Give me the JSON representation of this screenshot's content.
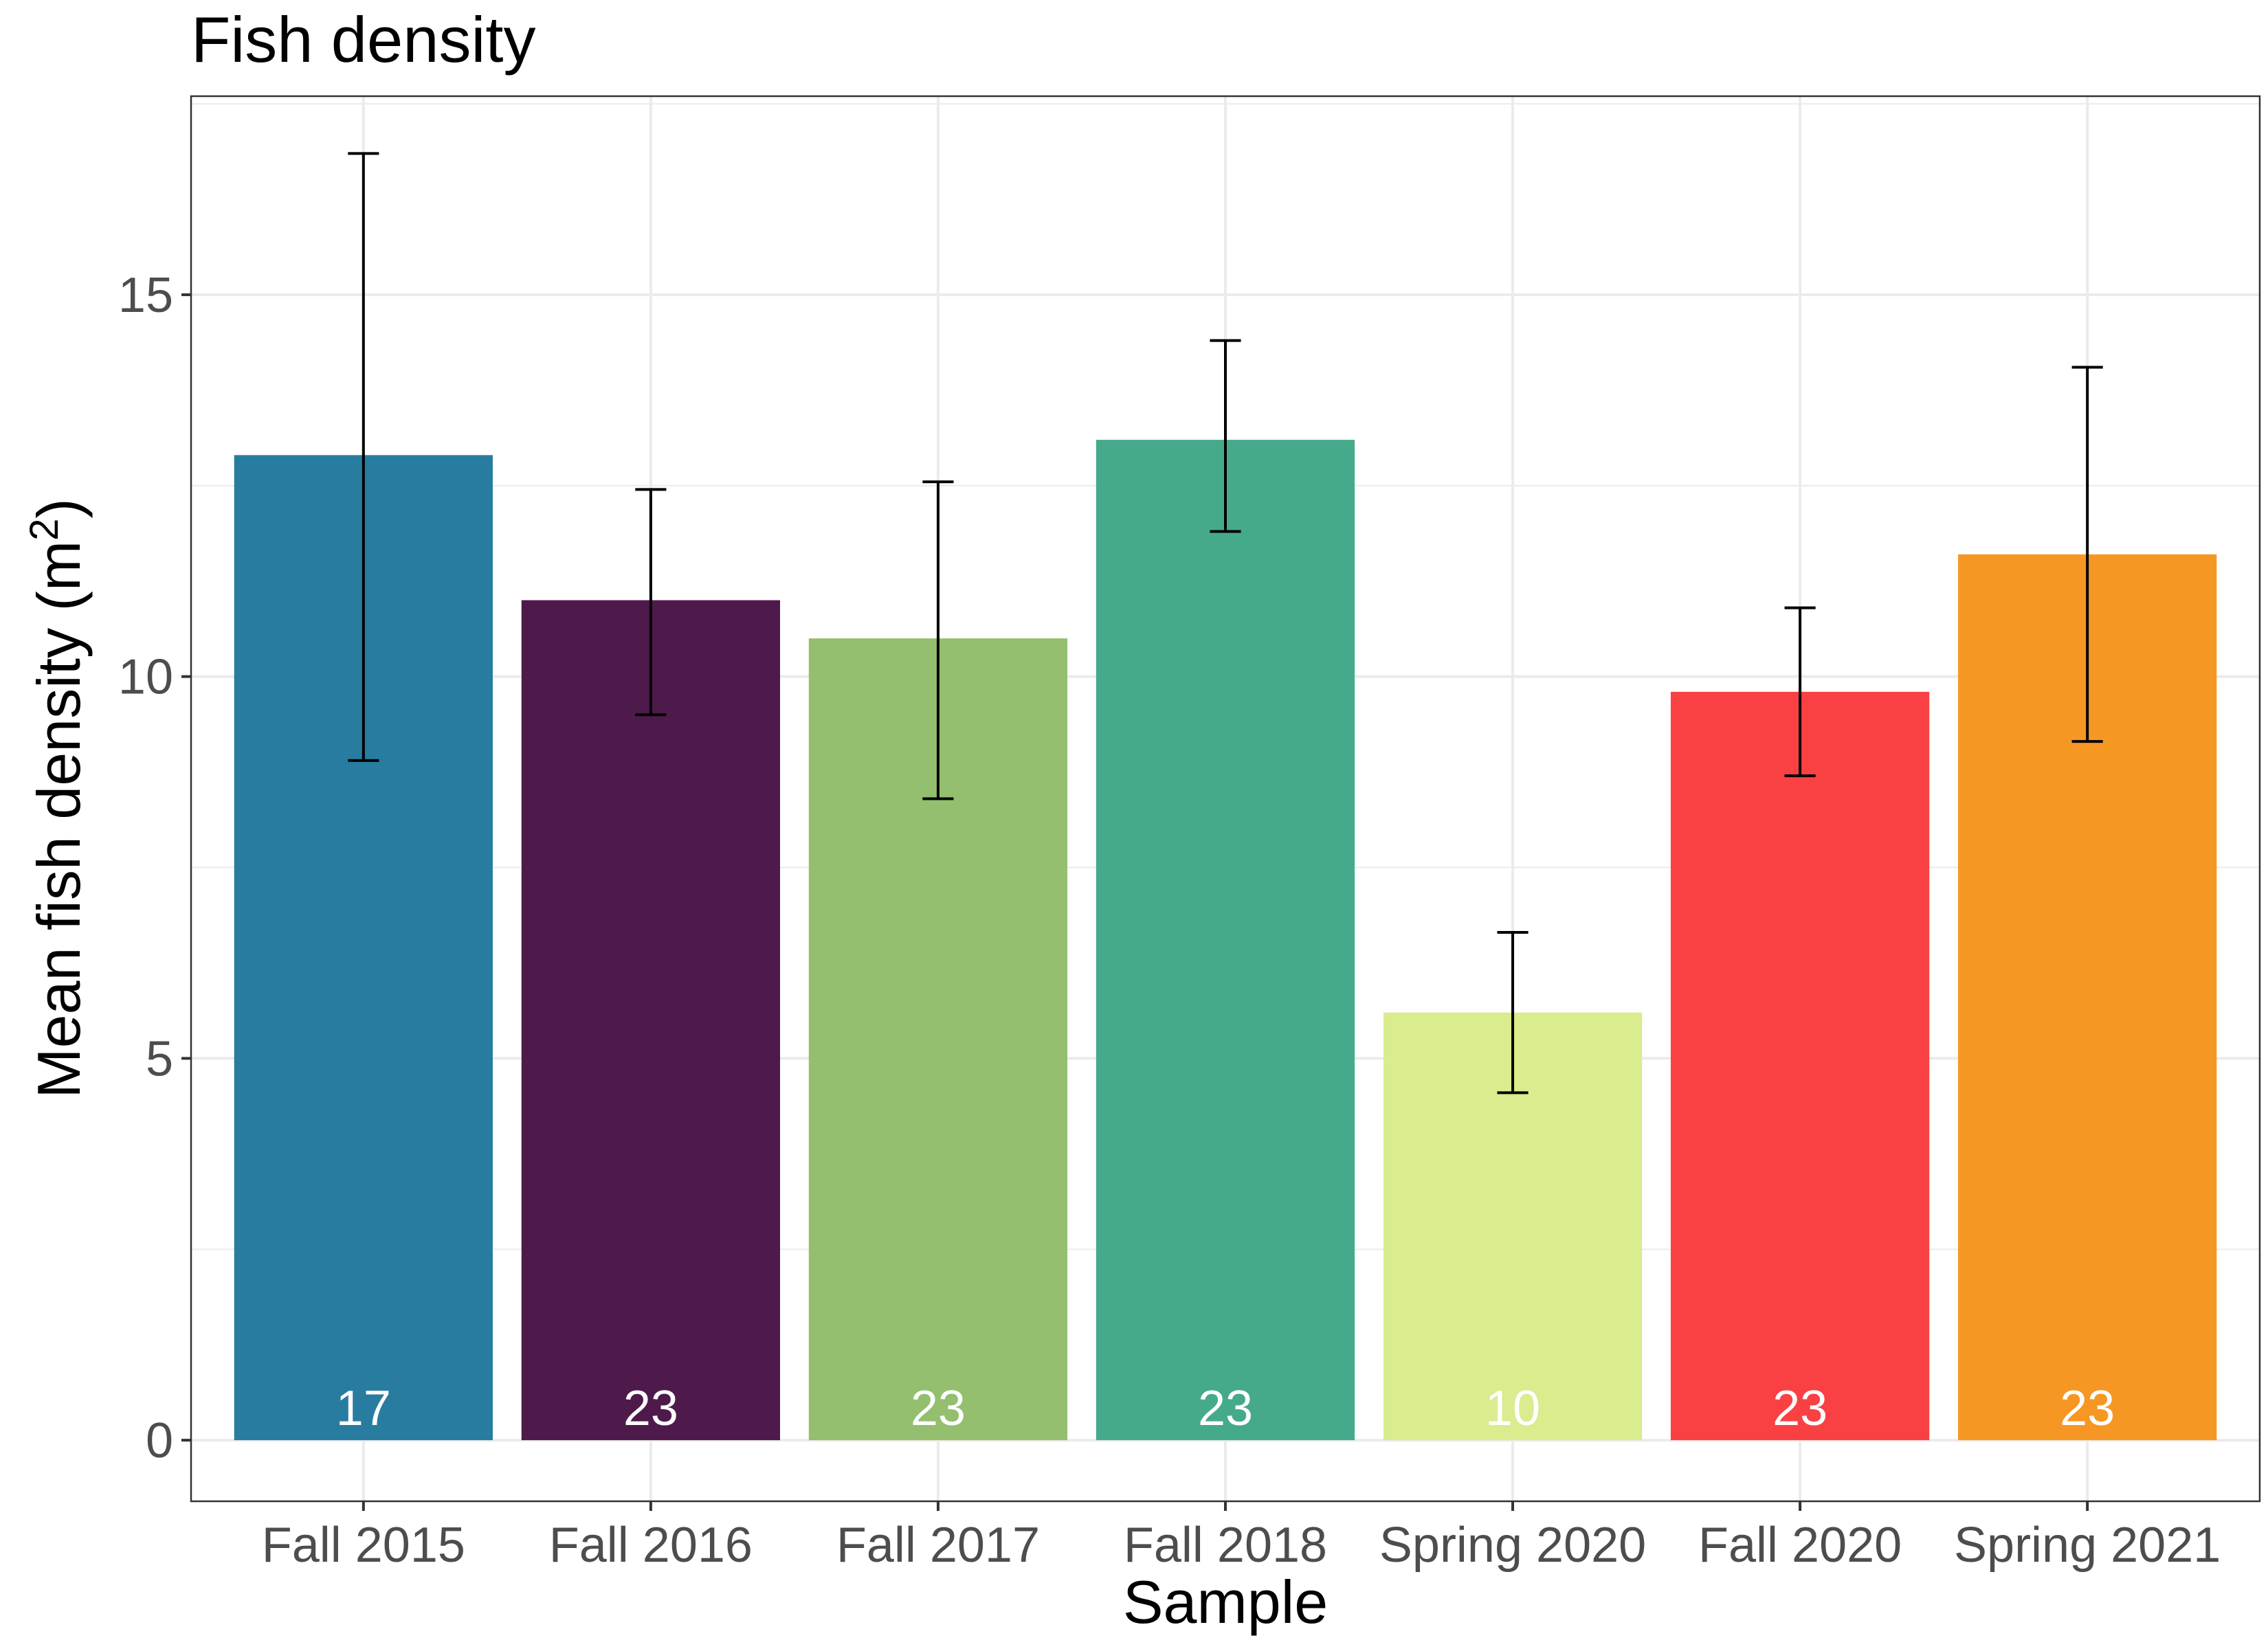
{
  "chart_data": {
    "type": "bar",
    "title": "Fish density",
    "xlabel": "Sample",
    "ylabel": "Mean fish density (m",
    "ylabel_superscript": "2",
    "ylabel_suffix": ")",
    "ylim": [
      -0.8,
      17.6
    ],
    "yticks": [
      0,
      5,
      10,
      15
    ],
    "grid": true,
    "legend": "none",
    "categories": [
      "Fall 2015",
      "Fall 2016",
      "Fall 2017",
      "Fall 2018",
      "Spring 2020",
      "Fall 2020",
      "Spring 2021"
    ],
    "values": [
      12.9,
      11.0,
      10.5,
      13.1,
      5.6,
      9.8,
      11.6
    ],
    "error_low": [
      8.9,
      9.5,
      8.4,
      11.9,
      4.55,
      8.7,
      9.15
    ],
    "error_high": [
      16.85,
      12.45,
      12.55,
      14.4,
      6.65,
      10.9,
      14.05
    ],
    "n_labels": [
      "17",
      "23",
      "23",
      "23",
      "10",
      "23",
      "23"
    ],
    "colors": [
      "#277c9f",
      "#4e1a4b",
      "#93bf6e",
      "#45aa8b",
      "#d9ec8e",
      "#f94144",
      "#f79723"
    ]
  }
}
